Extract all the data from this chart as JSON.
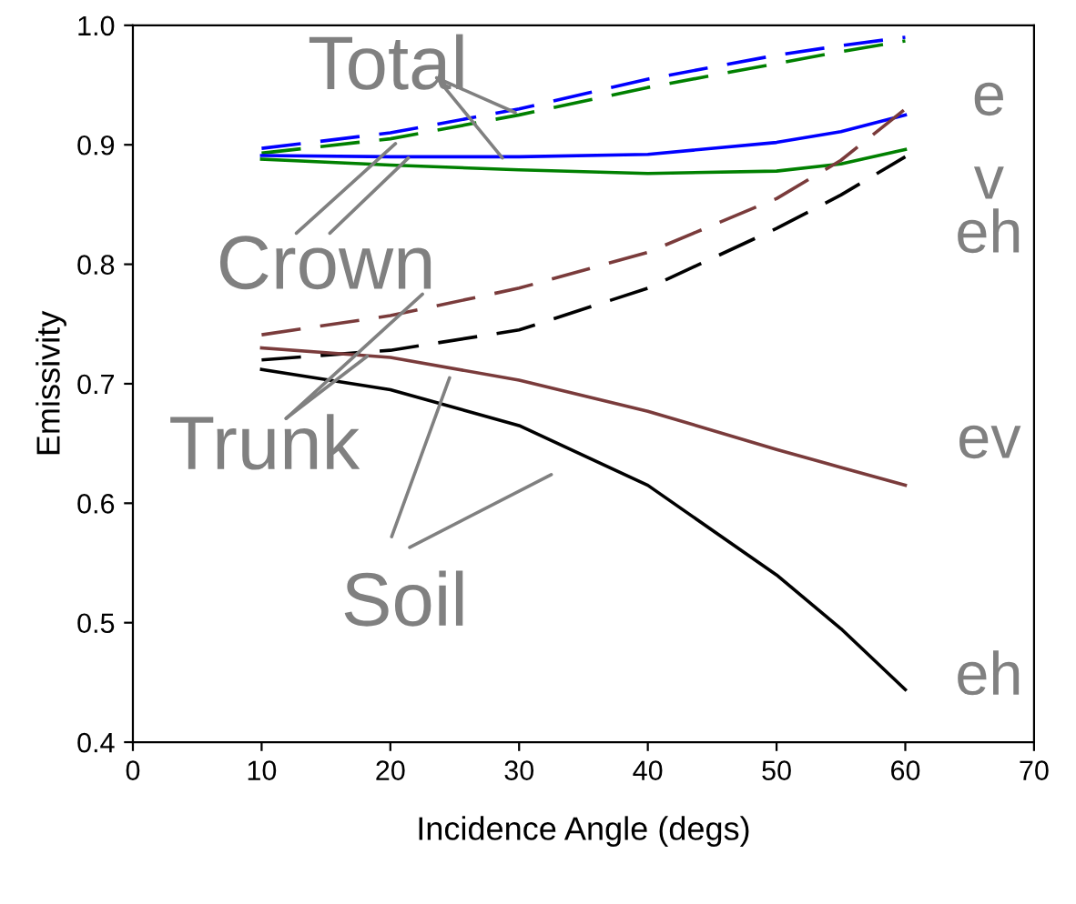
{
  "chart_data": {
    "type": "line",
    "xlabel": "Incidence Angle (degs)",
    "ylabel": "Emissivity",
    "xlim": [
      0,
      70
    ],
    "xticks": [
      0,
      10,
      20,
      30,
      40,
      50,
      60,
      70
    ],
    "ylim": [
      0.4,
      1.0
    ],
    "yticks": [
      {
        "value": 0.4,
        "label": "0.4"
      },
      {
        "value": 0.5,
        "label": "0.5"
      },
      {
        "value": 0.6,
        "label": "0.6"
      },
      {
        "value": 0.7,
        "label": "0.7"
      },
      {
        "value": 0.8,
        "label": "0.8"
      },
      {
        "value": 0.9,
        "label": "0.9"
      },
      {
        "value": 1.0,
        "label": "1.0"
      }
    ],
    "grid": false,
    "legend": false,
    "marker": "none",
    "x": [
      10,
      20,
      30,
      40,
      50,
      55,
      60
    ],
    "series": [
      {
        "color": "#0000ff",
        "line_style": "dashed",
        "values": [
          0.897,
          0.91,
          0.93,
          0.955,
          0.975,
          0.983,
          0.99
        ]
      },
      {
        "color": "#008000",
        "line_style": "dashed",
        "values": [
          0.893,
          0.905,
          0.925,
          0.948,
          0.968,
          0.978,
          0.987
        ]
      },
      {
        "color": "#0000ff",
        "line_style": "solid",
        "values": [
          0.891,
          0.89,
          0.89,
          0.892,
          0.902,
          0.911,
          0.925
        ]
      },
      {
        "color": "#008000",
        "line_style": "solid",
        "values": [
          0.888,
          0.883,
          0.879,
          0.876,
          0.878,
          0.884,
          0.896
        ]
      },
      {
        "color": "#7a3b3b",
        "line_style": "dashed",
        "values": [
          0.741,
          0.757,
          0.78,
          0.81,
          0.855,
          0.887,
          0.93
        ]
      },
      {
        "color": "#000000",
        "line_style": "dashed",
        "values": [
          0.72,
          0.728,
          0.745,
          0.78,
          0.83,
          0.858,
          0.89
        ]
      },
      {
        "color": "#7a3b3b",
        "line_style": "solid",
        "values": [
          0.73,
          0.722,
          0.703,
          0.677,
          0.645,
          0.63,
          0.615
        ]
      },
      {
        "color": "#000000",
        "line_style": "solid",
        "values": [
          0.712,
          0.695,
          0.665,
          0.615,
          0.54,
          0.495,
          0.444
        ]
      }
    ],
    "annotations": [
      "Total",
      "Crown",
      "Trunk",
      "Soil",
      "e",
      "v",
      "eh",
      "ev",
      "eh"
    ]
  }
}
